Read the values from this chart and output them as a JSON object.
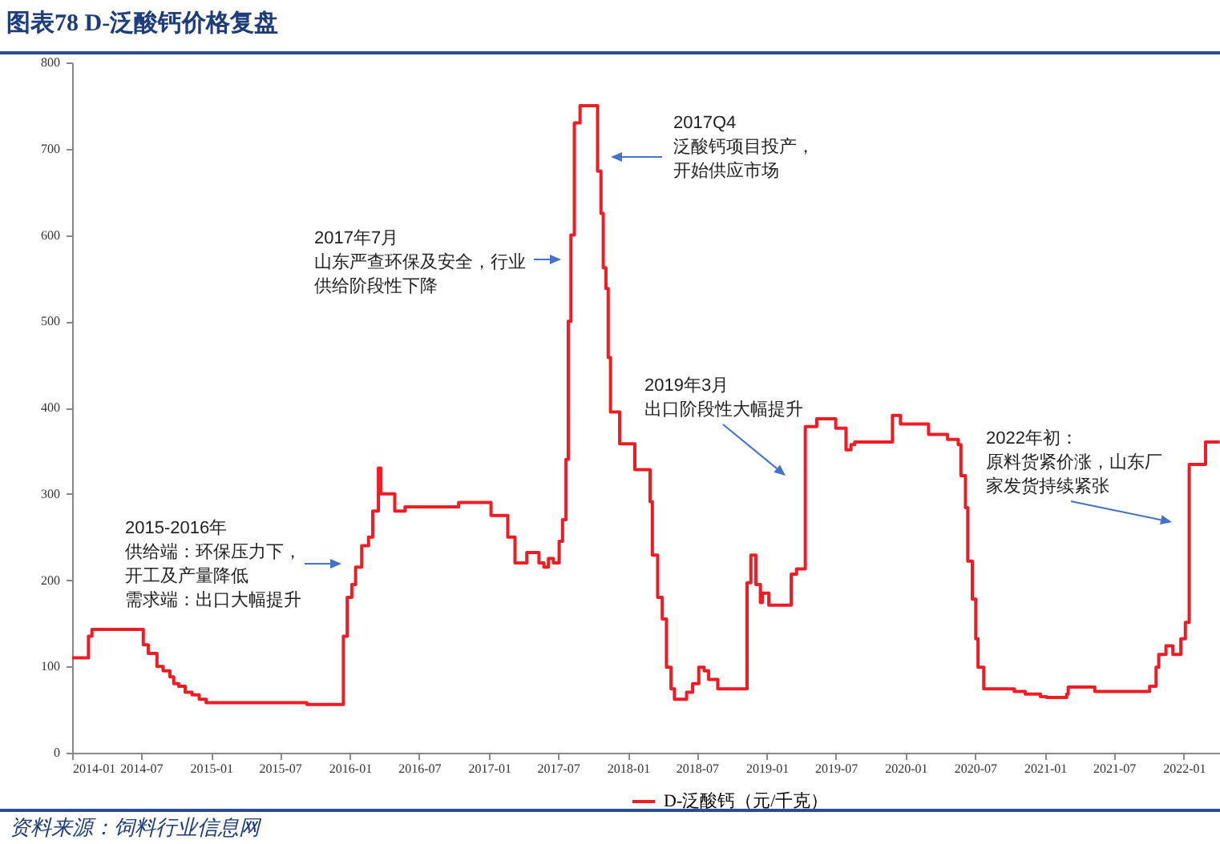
{
  "chart_data": {
    "type": "step",
    "title": "图表78 D-泛酸钙价格复盘",
    "xlim": [
      "2014-01",
      "2022-04-06"
    ],
    "ylim": [
      0,
      800
    ],
    "xticks": [
      "2014-01",
      "2014-07",
      "2015-01",
      "2015-07",
      "2016-01",
      "2016-07",
      "2017-01",
      "2017-07",
      "2018-01",
      "2018-07",
      "2019-01",
      "2019-07",
      "2020-01",
      "2020-07",
      "2021-01",
      "2021-07",
      "2022-01"
    ],
    "yticks": [
      0,
      100,
      200,
      300,
      400,
      500,
      600,
      700,
      800
    ],
    "legend": "bottom",
    "series": [
      {
        "name": "D-泛酸钙（元/千克）",
        "color": "#ee1c25",
        "x": [
          "2014-01-01",
          "2014-02-13",
          "2014-02-22",
          "2014-07-07",
          "2014-07-20",
          "2014-08-12",
          "2014-08-28",
          "2014-09-15",
          "2014-09-25",
          "2014-10-08",
          "2014-10-25",
          "2014-11-12",
          "2014-12-01",
          "2014-12-19",
          "2015-09-10",
          "2015-12-15",
          "2015-12-25",
          "2016-01-06",
          "2016-01-16",
          "2016-02-01",
          "2016-02-19",
          "2016-03-01",
          "2016-03-16",
          "2016-03-22",
          "2016-04-28",
          "2016-05-25",
          "2016-10-13",
          "2017-01-06",
          "2017-02-19",
          "2017-03-10",
          "2017-04-10",
          "2017-05-12",
          "2017-05-25",
          "2017-06-06",
          "2017-06-19",
          "2017-07-04",
          "2017-07-13",
          "2017-07-22",
          "2017-07-28",
          "2017-08-04",
          "2017-08-13",
          "2017-08-28",
          "2017-10-13",
          "2017-10-22",
          "2017-10-28",
          "2017-11-04",
          "2017-11-10",
          "2017-11-16",
          "2017-12-10",
          "2018-01-19",
          "2018-02-28",
          "2018-03-06",
          "2018-03-20",
          "2018-04-01",
          "2018-04-12",
          "2018-04-24",
          "2018-05-03",
          "2018-06-04",
          "2018-06-20",
          "2018-07-06",
          "2018-07-20",
          "2018-08-01",
          "2018-08-25",
          "2018-11-10",
          "2018-11-20",
          "2018-12-03",
          "2018-12-15",
          "2018-12-20",
          "2019-01-06",
          "2019-03-06",
          "2019-03-20",
          "2019-04-12",
          "2019-05-12",
          "2019-07-01",
          "2019-07-28",
          "2019-08-10",
          "2019-08-20",
          "2019-11-27",
          "2019-12-18",
          "2020-03-01",
          "2020-04-20",
          "2020-05-18",
          "2020-05-25",
          "2020-06-06",
          "2020-06-12",
          "2020-06-24",
          "2020-07-03",
          "2020-07-09",
          "2020-07-24",
          "2020-10-12",
          "2020-11-10",
          "2020-12-20",
          "2021-01-05",
          "2021-02-27",
          "2021-03-03",
          "2021-05-12",
          "2021-09-18",
          "2021-10-03",
          "2021-10-20",
          "2021-10-27",
          "2021-11-15",
          "2021-12-03",
          "2021-12-24",
          "2022-01-05",
          "2022-01-15",
          "2022-02-27",
          "2022-04-05"
        ],
        "values": [
          110,
          135,
          143,
          125,
          115,
          100,
          95,
          88,
          80,
          77,
          70,
          67,
          62,
          58,
          56,
          135,
          180,
          195,
          215,
          240,
          250,
          280,
          330,
          300,
          280,
          285,
          290,
          275,
          250,
          220,
          232,
          220,
          215,
          225,
          220,
          245,
          270,
          340,
          500,
          600,
          730,
          750,
          674,
          625,
          562,
          538,
          458,
          395,
          358,
          328,
          291,
          229,
          180,
          155,
          99,
          74,
          62,
          70,
          80,
          99,
          95,
          85,
          74,
          197,
          229,
          195,
          174,
          185,
          171,
          207,
          213,
          378,
          387,
          376,
          351,
          357,
          360,
          391,
          381,
          369,
          363,
          357,
          321,
          284,
          222,
          178,
          132,
          99,
          74,
          71,
          68,
          65,
          64,
          68,
          76,
          71,
          71,
          77,
          99,
          114,
          124,
          114,
          132,
          151,
          334,
          360,
          360
        ]
      }
    ],
    "annotations": [
      "2015-2016年",
      "供给端：环保压力下，开工及产量降低",
      "需求端：出口大幅提升",
      "2017年7月",
      "山东严查环保及安全，行业供给阶段性下降",
      "2017Q4",
      "泛酸钙项目投产，开始供应市场",
      "2019年3月",
      "出口阶段性大幅提升",
      "2022年初：",
      "原料货紧价涨，山东厂家发货持续紧张",
      "资料来源：饲料行业信息网"
    ]
  }
}
